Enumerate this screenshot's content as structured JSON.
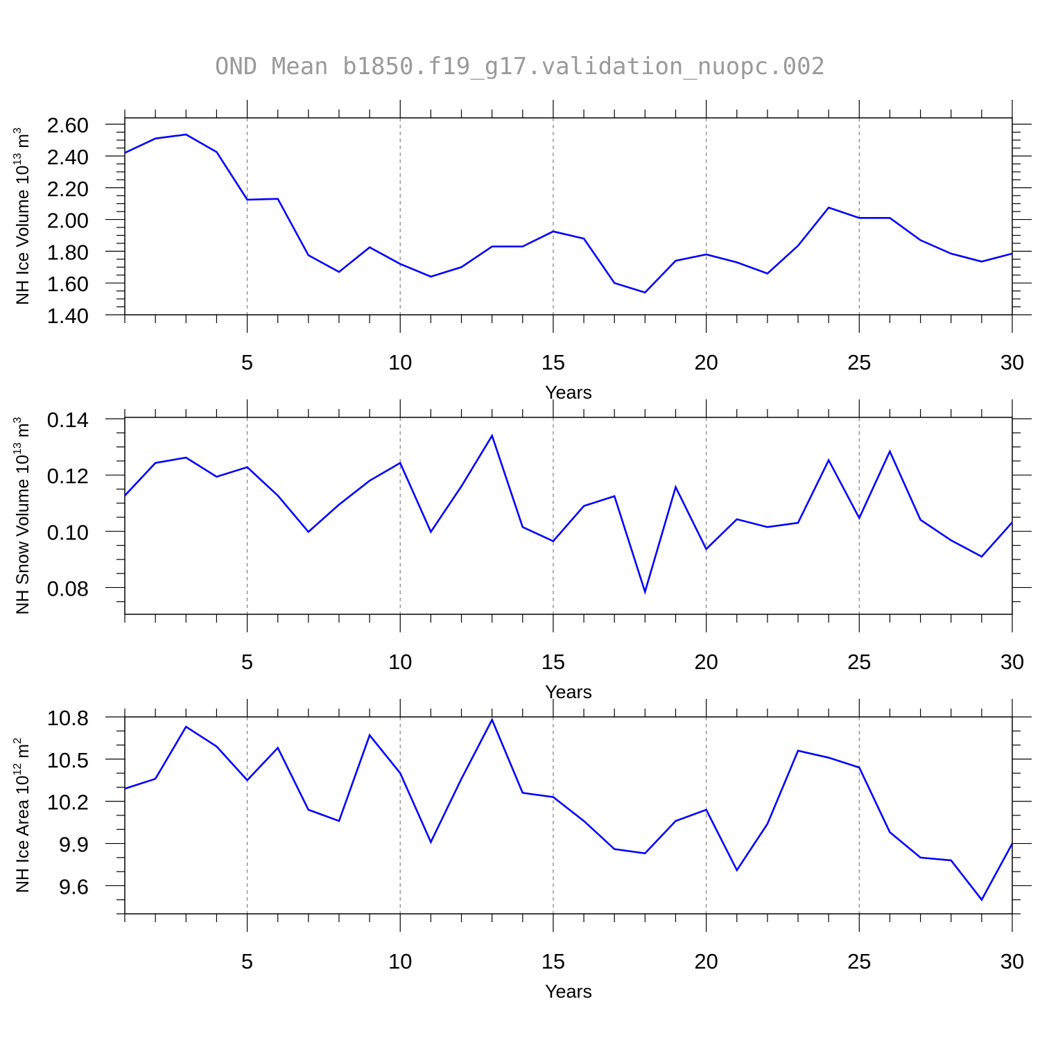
{
  "figure_title": "OND Mean b1850.f19_g17.validation_nuopc.002",
  "colors": {
    "series_line": "#0000ff",
    "grid": "#7f7f7f",
    "axis": "#000000",
    "title": "#9a9a9a"
  },
  "chart_data": [
    {
      "type": "line",
      "ylabel": {
        "text": "NH Ice Volume 10",
        "exponent": "13",
        "unit": " m",
        "unit_exponent": "3"
      },
      "xlabel": "Years",
      "xlim": [
        1,
        30
      ],
      "ylim": [
        1.4,
        2.64
      ],
      "x_ticks": [
        5,
        10,
        15,
        20,
        25,
        30
      ],
      "x_tick_labels": [
        "5",
        "10",
        "15",
        "20",
        "25",
        "30"
      ],
      "y_ticks": [
        1.4,
        1.6,
        1.8,
        2.0,
        2.2,
        2.4,
        2.6
      ],
      "y_tick_labels": [
        "1.40",
        "1.60",
        "1.80",
        "2.00",
        "2.20",
        "2.40",
        "2.60"
      ],
      "y_minor_step": 0.05,
      "grid": "vertical dashed at major x ticks",
      "x": [
        1,
        2,
        3,
        4,
        5,
        6,
        7,
        8,
        9,
        10,
        11,
        12,
        13,
        14,
        15,
        16,
        17,
        18,
        19,
        20,
        21,
        22,
        23,
        24,
        25,
        26,
        27,
        28,
        29,
        30
      ],
      "series": [
        {
          "name": "NH Ice Volume",
          "values": [
            2.42,
            2.51,
            2.535,
            2.425,
            2.125,
            2.13,
            1.775,
            1.67,
            1.825,
            1.72,
            1.64,
            1.7,
            1.83,
            1.83,
            1.925,
            1.88,
            1.6,
            1.54,
            1.74,
            1.78,
            1.73,
            1.66,
            1.835,
            2.075,
            2.01,
            2.01,
            1.87,
            1.785,
            1.735,
            1.785
          ]
        }
      ]
    },
    {
      "type": "line",
      "ylabel": {
        "text": "NH Snow Volume 10",
        "exponent": "13",
        "unit": " m",
        "unit_exponent": "3"
      },
      "xlabel": "Years",
      "xlim": [
        1,
        30
      ],
      "ylim": [
        0.0705,
        0.1405
      ],
      "x_ticks": [
        5,
        10,
        15,
        20,
        25,
        30
      ],
      "x_tick_labels": [
        "5",
        "10",
        "15",
        "20",
        "25",
        "30"
      ],
      "y_ticks": [
        0.08,
        0.1,
        0.12,
        0.14
      ],
      "y_tick_labels": [
        "0.08",
        "0.10",
        "0.12",
        "0.14"
      ],
      "y_minor_step": 0.005,
      "grid": "vertical dashed at major x ticks",
      "x": [
        1,
        2,
        3,
        4,
        5,
        6,
        7,
        8,
        9,
        10,
        11,
        12,
        13,
        14,
        15,
        16,
        17,
        18,
        19,
        20,
        21,
        22,
        23,
        24,
        25,
        26,
        27,
        28,
        29,
        30
      ],
      "series": [
        {
          "name": "NH Snow Volume",
          "values": [
            0.1127,
            0.1243,
            0.1262,
            0.1194,
            0.1228,
            0.1127,
            0.0998,
            0.1095,
            0.118,
            0.1243,
            0.0998,
            0.116,
            0.134,
            0.1015,
            0.0965,
            0.109,
            0.1125,
            0.0785,
            0.1157,
            0.0937,
            0.1043,
            0.1015,
            0.103,
            0.1253,
            0.1047,
            0.1284,
            0.1041,
            0.0968,
            0.091,
            0.1032
          ]
        }
      ]
    },
    {
      "type": "line",
      "ylabel": {
        "text": "NH Ice Area 10",
        "exponent": "12",
        "unit": " m",
        "unit_exponent": "2"
      },
      "xlabel": "Years",
      "xlim": [
        1,
        30
      ],
      "ylim": [
        9.4,
        10.8
      ],
      "x_ticks": [
        5,
        10,
        15,
        20,
        25,
        30
      ],
      "x_tick_labels": [
        "5",
        "10",
        "15",
        "20",
        "25",
        "30"
      ],
      "y_ticks": [
        9.6,
        9.9,
        10.2,
        10.5,
        10.8
      ],
      "y_tick_labels": [
        "9.6",
        "9.9",
        "10.2",
        "10.5",
        "10.8"
      ],
      "y_minor_step": 0.1,
      "grid": "vertical dashed at major x ticks",
      "x": [
        1,
        2,
        3,
        4,
        5,
        6,
        7,
        8,
        9,
        10,
        11,
        12,
        13,
        14,
        15,
        16,
        17,
        18,
        19,
        20,
        21,
        22,
        23,
        24,
        25,
        26,
        27,
        28,
        29,
        30
      ],
      "series": [
        {
          "name": "NH Ice Area",
          "values": [
            10.29,
            10.36,
            10.73,
            10.59,
            10.35,
            10.58,
            10.14,
            10.06,
            10.67,
            10.4,
            9.91,
            10.36,
            10.78,
            10.26,
            10.23,
            10.06,
            9.86,
            9.83,
            10.06,
            10.14,
            9.71,
            10.04,
            10.56,
            10.51,
            10.44,
            9.98,
            9.8,
            9.78,
            9.5,
            9.9
          ]
        }
      ]
    }
  ]
}
